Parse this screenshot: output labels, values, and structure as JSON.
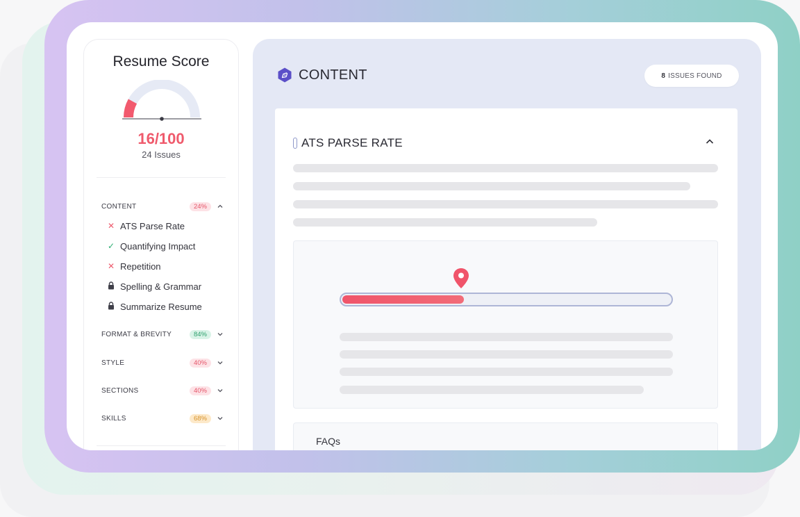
{
  "score_panel": {
    "title": "Resume Score",
    "score": "16/100",
    "score_fraction": 0.16,
    "issues": "24 Issues",
    "categories": [
      {
        "label": "CONTENT",
        "badge": "24%",
        "status": "red",
        "expanded": true,
        "items": [
          {
            "label": "ATS Parse Rate",
            "icon": "x-icon"
          },
          {
            "label": "Quantifying Impact",
            "icon": "check-icon"
          },
          {
            "label": "Repetition",
            "icon": "x-icon"
          },
          {
            "label": "Spelling & Grammar",
            "icon": "lock-icon"
          },
          {
            "label": "Summarize Resume",
            "icon": "lock-icon"
          }
        ]
      },
      {
        "label": "FORMAT & BREVITY",
        "badge": "84%",
        "status": "green",
        "expanded": false
      },
      {
        "label": "STYLE",
        "badge": "40%",
        "status": "red",
        "expanded": false
      },
      {
        "label": "SECTIONS",
        "badge": "40%",
        "status": "red",
        "expanded": false
      },
      {
        "label": "SKILLS",
        "badge": "68%",
        "status": "orange",
        "expanded": false
      }
    ]
  },
  "content": {
    "section_title": "CONTENT",
    "issues_count": "8",
    "issues_suffix": "ISSUES FOUND",
    "card_title": "ATS PARSE RATE",
    "parse_rate_fraction": 0.37,
    "faq_title": "FAQs"
  },
  "colors": {
    "accent_red": "#ef5a6c",
    "accent_purple": "#5b4fc8",
    "panel_bg": "#e4e8f5"
  }
}
